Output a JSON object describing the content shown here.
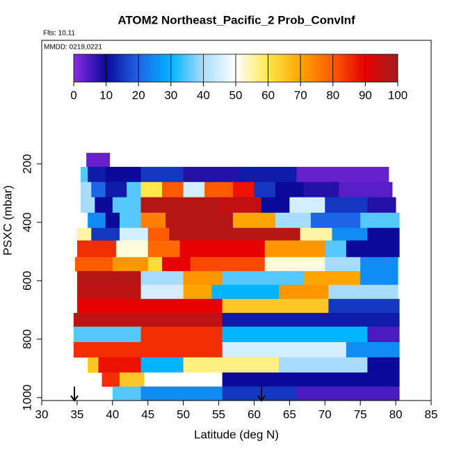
{
  "chart_data": {
    "type": "heatmap",
    "title": "ATOM2 Northeast_Pacific_2 Prob_ConvInf",
    "subtitle": "Flts: 10,11",
    "annotation": "MMDD: 0219,0221",
    "x_label": "Latitude (deg N)",
    "y_label": "PSXC (mbar)",
    "xlim": [
      30,
      85
    ],
    "ylim": [
      1010,
      -223
    ],
    "xticks": [
      30,
      35,
      40,
      45,
      50,
      55,
      60,
      65,
      70,
      75,
      80,
      85
    ],
    "yticks": [
      200,
      400,
      600,
      800,
      1000
    ],
    "colorbar": {
      "ticks": [
        0,
        10,
        20,
        30,
        40,
        50,
        60,
        70,
        80,
        90,
        100
      ],
      "colors": [
        "#8a2be2",
        "#0a0a9a",
        "#1e64e6",
        "#00b4ff",
        "#a8dcff",
        "#ffffff",
        "#ffe94a",
        "#ffa500",
        "#ff5a00",
        "#e60000",
        "#a01e1e"
      ]
    },
    "rows": [
      {
        "p": [
          162,
          210
        ],
        "edges": [
          36.3,
          39.6
        ],
        "values": [
          3
        ]
      },
      {
        "p": [
          210,
          262
        ],
        "edges": [
          35.5,
          36.5,
          39,
          44,
          50,
          58,
          66,
          79
        ],
        "values": [
          35,
          12,
          10,
          15,
          8,
          12,
          3
        ]
      },
      {
        "p": [
          262,
          314
        ],
        "edges": [
          35.5,
          37,
          39,
          42,
          44,
          47,
          50,
          53,
          57,
          60,
          63,
          67,
          72,
          79.5
        ],
        "values": [
          40,
          20,
          12,
          35,
          60,
          80,
          45,
          80,
          88,
          15,
          10,
          8,
          4
        ]
      },
      {
        "p": [
          314,
          367
        ],
        "edges": [
          35.5,
          37.5,
          40,
          44,
          55,
          61,
          65,
          70,
          76,
          80
        ],
        "values": [
          40,
          10,
          35,
          97,
          95,
          10,
          45,
          15,
          8
        ]
      },
      {
        "p": [
          367,
          419
        ],
        "edges": [
          35.5,
          36.5,
          39,
          41,
          44,
          47.5,
          57,
          63,
          68,
          75,
          80.5
        ],
        "values": [
          50,
          25,
          10,
          35,
          75,
          97,
          70,
          40,
          20,
          35
        ]
      },
      {
        "p": [
          419,
          462
        ],
        "edges": [
          35,
          37,
          41,
          45,
          48,
          66.5,
          71,
          76,
          80.5
        ],
        "values": [
          55,
          15,
          45,
          80,
          97,
          55,
          25,
          10
        ]
      },
      {
        "p": [
          462,
          519
        ],
        "edges": [
          35,
          40.5,
          45,
          49.5,
          61.5,
          70,
          73,
          80.5
        ],
        "values": [
          85,
          52,
          78,
          90,
          72,
          35,
          10
        ]
      },
      {
        "p": [
          519,
          567
        ],
        "edges": [
          34.7,
          40,
          45,
          47,
          51,
          61.5,
          70,
          75,
          80.3
        ],
        "values": [
          80,
          72,
          62,
          90,
          82,
          52,
          40,
          25
        ]
      },
      {
        "p": [
          567,
          614
        ],
        "edges": [
          35,
          44,
          50,
          55.5,
          67,
          75,
          80.3
        ],
        "values": [
          97,
          40,
          72,
          35,
          70,
          25
        ]
      },
      {
        "p": [
          614,
          662
        ],
        "edges": [
          35,
          44,
          50,
          54,
          63.5,
          70.5,
          80.3
        ],
        "values": [
          96,
          45,
          70,
          30,
          72,
          40
        ]
      },
      {
        "p": [
          662,
          710
        ],
        "edges": [
          35,
          55.5,
          70.5,
          80.5
        ],
        "values": [
          90,
          65,
          15
        ]
      },
      {
        "p": [
          710,
          757
        ],
        "edges": [
          34.5,
          55.5,
          80.5
        ],
        "values": [
          96,
          12
        ]
      },
      {
        "p": [
          757,
          810
        ],
        "edges": [
          34.5,
          44,
          55.5,
          76,
          80.5
        ],
        "values": [
          35,
          85,
          30,
          5
        ]
      },
      {
        "p": [
          810,
          862
        ],
        "edges": [
          34.5,
          55.5,
          73,
          80.5
        ],
        "values": [
          85,
          45,
          25
        ]
      },
      {
        "p": [
          862,
          914
        ],
        "edges": [
          36.5,
          38,
          44,
          50,
          63.5,
          76,
          80.5
        ],
        "values": [
          65,
          88,
          30,
          57,
          40,
          10
        ]
      },
      {
        "p": [
          914,
          962
        ],
        "edges": [
          38.5,
          41,
          44.5,
          55.5,
          80.5
        ],
        "values": [
          85,
          65,
          50,
          10
        ]
      },
      {
        "p": [
          962,
          1010
        ],
        "edges": [
          40,
          44,
          55.5,
          66,
          80.5
        ],
        "values": [
          35,
          25,
          15,
          5
        ]
      }
    ]
  }
}
